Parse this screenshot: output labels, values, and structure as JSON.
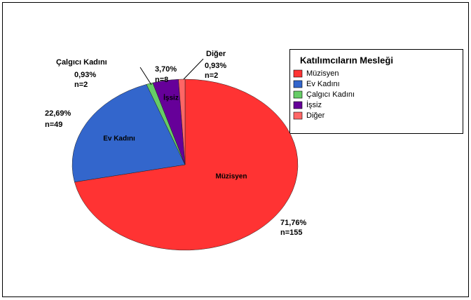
{
  "chart_data": {
    "type": "pie",
    "legend_title": "Katılımcıların Mesleği",
    "legend": "right",
    "categories": [
      "Müzisyen",
      "Ev Kadını",
      "Çalgıcı Kadını",
      "İşsiz",
      "Diğer"
    ],
    "values": [
      71.76,
      22.69,
      0.93,
      3.7,
      0.93
    ],
    "value_labels": [
      "71,76%",
      "22,69%",
      "0,93%",
      "3,70%",
      "0,93%"
    ],
    "counts": [
      155,
      49,
      2,
      8,
      2
    ],
    "count_labels": [
      "n=155",
      "n=49",
      "n=2",
      "n=8",
      "n=2"
    ],
    "colors": [
      "#ff3333",
      "#3366cc",
      "#66cc66",
      "#660099",
      "#ff6666"
    ]
  }
}
